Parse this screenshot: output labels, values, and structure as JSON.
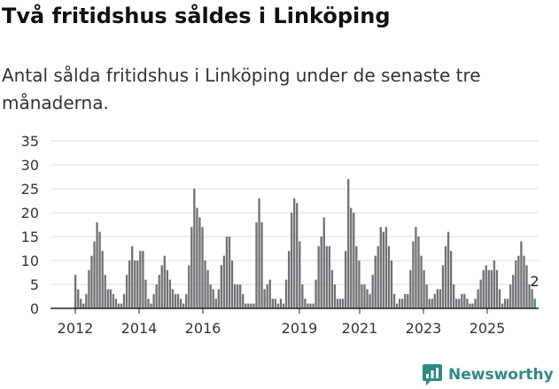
{
  "header": {
    "title": "Två fritidshus såldes i Linköping",
    "subtitle": "Antal sålda fritidshus i Linköping under de senaste tre månaderna."
  },
  "brand": {
    "name": "Newsworthy",
    "color": "#2f8a80"
  },
  "chart_data": {
    "type": "bar",
    "title": "",
    "xlabel": "",
    "ylabel": "",
    "ylim": [
      0,
      35
    ],
    "yticks": [
      0,
      5,
      10,
      15,
      20,
      25,
      30,
      35
    ],
    "xticks": [
      "2012",
      "2014",
      "2016",
      "2019",
      "2021",
      "2023",
      "2025"
    ],
    "grid": true,
    "bar_color": "#707075",
    "highlight_color": "#2f8a80",
    "series": [
      {
        "values": [
          7,
          4,
          2,
          1,
          3,
          8,
          11,
          14,
          18,
          16,
          12,
          7,
          4,
          4,
          3,
          2,
          1,
          1,
          3,
          7,
          10,
          13,
          10,
          10,
          12,
          12,
          6,
          2,
          1,
          3,
          5,
          7,
          9,
          11,
          8,
          6,
          4,
          3,
          3,
          2,
          1,
          3,
          9,
          17,
          25,
          21,
          19,
          17,
          10,
          8,
          5,
          4,
          2,
          4,
          9,
          11,
          15,
          15,
          10,
          5,
          5,
          5,
          3,
          1,
          1,
          1,
          1,
          18,
          23,
          18,
          4,
          5,
          6,
          2,
          2,
          1,
          2,
          1,
          6,
          12,
          20,
          23,
          22,
          14,
          5,
          2,
          1,
          1,
          1,
          6,
          13,
          15,
          19,
          13,
          13,
          8,
          5,
          2,
          2,
          2,
          12,
          27,
          21,
          20,
          13,
          10,
          5,
          5,
          4,
          3,
          7,
          11,
          13,
          17,
          16,
          17,
          13,
          10,
          3,
          1,
          2,
          2,
          3,
          3,
          8,
          14,
          17,
          15,
          11,
          8,
          5,
          2,
          2,
          3,
          4,
          4,
          9,
          13,
          16,
          12,
          5,
          2,
          2,
          3,
          3,
          2,
          1,
          1,
          2,
          4,
          6,
          8,
          9,
          8,
          8,
          10,
          8,
          4,
          1,
          2,
          2,
          5,
          7,
          10,
          11,
          14,
          11,
          9,
          5,
          4,
          2
        ]
      }
    ],
    "last_label": "2"
  }
}
